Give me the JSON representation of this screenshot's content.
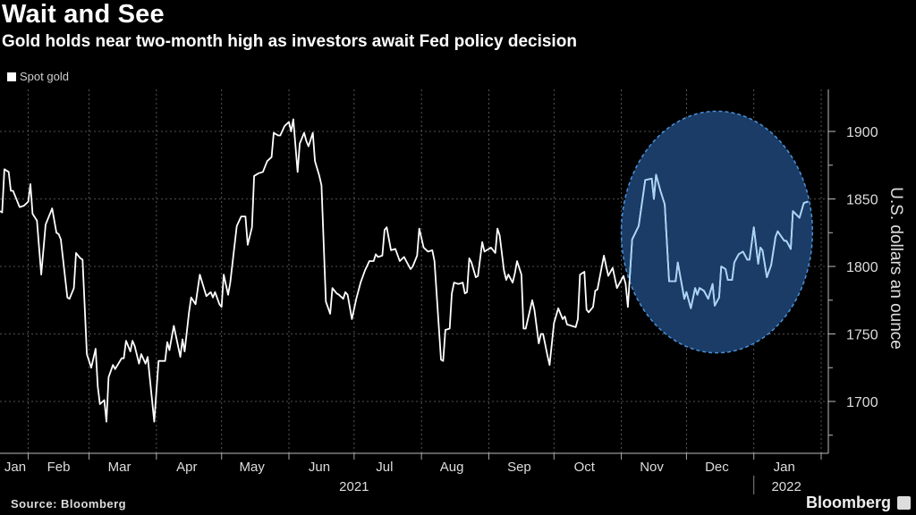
{
  "header": {
    "title": "Wait and See",
    "subtitle": "Gold holds near two-month high as investors await Fed policy decision"
  },
  "footer": {
    "source": "Source: Bloomberg",
    "brand": "Bloomberg"
  },
  "colors": {
    "background": "#000000",
    "line": "#ffffff",
    "highlight_line": "#a9d4f7",
    "highlight_fill": "#1a3c66",
    "highlight_border": "#4a90d9",
    "grid": "#6a6a6a"
  },
  "chart_data": {
    "type": "line",
    "title": "Wait and See",
    "subtitle": "Gold holds near two-month high as investors await Fed policy decision",
    "ylabel": "U.S. dollars an ounce",
    "xlabel": "",
    "y_axis_side": "right",
    "ylim": [
      1660,
      1935
    ],
    "yticks": [
      1700,
      1750,
      1800,
      1850,
      1900
    ],
    "ytick_labels": [
      "1700",
      "1750",
      "1800",
      "1850",
      "1900"
    ],
    "xlim": [
      "2021-01-19",
      "2022-02-08"
    ],
    "xticks": [
      {
        "label": "Jan",
        "date": "2021-01-15"
      },
      {
        "label": "Feb",
        "date": "2021-02-15"
      },
      {
        "label": "Mar",
        "date": "2021-03-15"
      },
      {
        "label": "Apr",
        "date": "2021-04-15"
      },
      {
        "label": "May",
        "date": "2021-05-15"
      },
      {
        "label": "Jun",
        "date": "2021-06-15"
      },
      {
        "label": "Jul",
        "date": "2021-07-15"
      },
      {
        "label": "Aug",
        "date": "2021-08-15"
      },
      {
        "label": "Sep",
        "date": "2021-09-15"
      },
      {
        "label": "Oct",
        "date": "2021-10-15"
      },
      {
        "label": "Nov",
        "date": "2021-11-15"
      },
      {
        "label": "Dec",
        "date": "2021-12-15"
      },
      {
        "label": "Jan",
        "date": "2022-01-15"
      }
    ],
    "year_labels": [
      {
        "label": "2021",
        "date": "2021-07-01"
      },
      {
        "label": "2022",
        "date": "2022-01-16"
      }
    ],
    "grid": true,
    "legend": {
      "position": "top-left",
      "entries": [
        "Spot gold"
      ]
    },
    "highlight": {
      "shape": "ellipse",
      "x_range": [
        "2021-11-01",
        "2022-01-28"
      ],
      "y_range": [
        1736,
        1915
      ]
    },
    "series": [
      {
        "name": "Spot gold",
        "points": [
          [
            "2021-01-19",
            1841
          ],
          [
            "2021-01-20",
            1840
          ],
          [
            "2021-01-21",
            1872
          ],
          [
            "2021-01-23",
            1870
          ],
          [
            "2021-01-24",
            1856
          ],
          [
            "2021-01-25",
            1856
          ],
          [
            "2021-01-28",
            1844
          ],
          [
            "2021-01-30",
            1845
          ],
          [
            "2021-02-01",
            1848
          ],
          [
            "2021-02-02",
            1861
          ],
          [
            "2021-02-03",
            1839
          ],
          [
            "2021-02-05",
            1834
          ],
          [
            "2021-02-07",
            1794
          ],
          [
            "2021-02-09",
            1831
          ],
          [
            "2021-02-12",
            1843
          ],
          [
            "2021-02-14",
            1825
          ],
          [
            "2021-02-15",
            1824
          ],
          [
            "2021-02-16",
            1820
          ],
          [
            "2021-02-19",
            1777
          ],
          [
            "2021-02-20",
            1776
          ],
          [
            "2021-02-22",
            1784
          ],
          [
            "2021-02-23",
            1810
          ],
          [
            "2021-02-25",
            1806
          ],
          [
            "2021-02-26",
            1805
          ],
          [
            "2021-02-28",
            1735
          ],
          [
            "2021-03-02",
            1725
          ],
          [
            "2021-03-04",
            1739
          ],
          [
            "2021-03-05",
            1711
          ],
          [
            "2021-03-06",
            1698
          ],
          [
            "2021-03-08",
            1701
          ],
          [
            "2021-03-09",
            1685
          ],
          [
            "2021-03-10",
            1718
          ],
          [
            "2021-03-12",
            1727
          ],
          [
            "2021-03-13",
            1724
          ],
          [
            "2021-03-16",
            1732
          ],
          [
            "2021-03-17",
            1732
          ],
          [
            "2021-03-18",
            1745
          ],
          [
            "2021-03-20",
            1737
          ],
          [
            "2021-03-21",
            1745
          ],
          [
            "2021-03-22",
            1741
          ],
          [
            "2021-03-24",
            1728
          ],
          [
            "2021-03-25",
            1735
          ],
          [
            "2021-03-27",
            1728
          ],
          [
            "2021-03-28",
            1733
          ],
          [
            "2021-03-31",
            1685
          ],
          [
            "2021-04-02",
            1730
          ],
          [
            "2021-04-05",
            1730
          ],
          [
            "2021-04-06",
            1744
          ],
          [
            "2021-04-07",
            1738
          ],
          [
            "2021-04-09",
            1756
          ],
          [
            "2021-04-12",
            1733
          ],
          [
            "2021-04-13",
            1746
          ],
          [
            "2021-04-14",
            1737
          ],
          [
            "2021-04-16",
            1766
          ],
          [
            "2021-04-17",
            1777
          ],
          [
            "2021-04-19",
            1772
          ],
          [
            "2021-04-21",
            1794
          ],
          [
            "2021-04-24",
            1778
          ],
          [
            "2021-04-26",
            1781
          ],
          [
            "2021-04-27",
            1777
          ],
          [
            "2021-04-28",
            1781
          ],
          [
            "2021-04-30",
            1772
          ],
          [
            "2021-05-01",
            1770
          ],
          [
            "2021-05-02",
            1794
          ],
          [
            "2021-05-04",
            1779
          ],
          [
            "2021-05-05",
            1788
          ],
          [
            "2021-05-08",
            1830
          ],
          [
            "2021-05-10",
            1837
          ],
          [
            "2021-05-12",
            1837
          ],
          [
            "2021-05-13",
            1816
          ],
          [
            "2021-05-15",
            1829
          ],
          [
            "2021-05-16",
            1867
          ],
          [
            "2021-05-18",
            1869
          ],
          [
            "2021-05-20",
            1870
          ],
          [
            "2021-05-22",
            1878
          ],
          [
            "2021-05-24",
            1881
          ],
          [
            "2021-05-25",
            1899
          ],
          [
            "2021-05-27",
            1897
          ],
          [
            "2021-05-28",
            1897
          ],
          [
            "2021-05-30",
            1904
          ],
          [
            "2021-06-01",
            1907
          ],
          [
            "2021-06-02",
            1900
          ],
          [
            "2021-06-03",
            1909
          ],
          [
            "2021-06-05",
            1870
          ],
          [
            "2021-06-06",
            1891
          ],
          [
            "2021-06-08",
            1899
          ],
          [
            "2021-06-09",
            1893
          ],
          [
            "2021-06-10",
            1889
          ],
          [
            "2021-06-12",
            1899
          ],
          [
            "2021-06-13",
            1878
          ],
          [
            "2021-06-15",
            1867
          ],
          [
            "2021-06-16",
            1860
          ],
          [
            "2021-06-18",
            1774
          ],
          [
            "2021-06-20",
            1765
          ],
          [
            "2021-06-21",
            1784
          ],
          [
            "2021-06-23",
            1780
          ],
          [
            "2021-06-24",
            1779
          ],
          [
            "2021-06-26",
            1776
          ],
          [
            "2021-06-27",
            1781
          ],
          [
            "2021-06-28",
            1779
          ],
          [
            "2021-06-30",
            1761
          ],
          [
            "2021-07-02",
            1776
          ],
          [
            "2021-07-04",
            1788
          ],
          [
            "2021-07-06",
            1797
          ],
          [
            "2021-07-08",
            1804
          ],
          [
            "2021-07-10",
            1804
          ],
          [
            "2021-07-11",
            1809
          ],
          [
            "2021-07-12",
            1807
          ],
          [
            "2021-07-14",
            1808
          ],
          [
            "2021-07-15",
            1827
          ],
          [
            "2021-07-16",
            1829
          ],
          [
            "2021-07-18",
            1812
          ],
          [
            "2021-07-20",
            1813
          ],
          [
            "2021-07-22",
            1804
          ],
          [
            "2021-07-24",
            1807
          ],
          [
            "2021-07-27",
            1798
          ],
          [
            "2021-07-28",
            1800
          ],
          [
            "2021-07-30",
            1808
          ],
          [
            "2021-07-31",
            1828
          ],
          [
            "2021-08-02",
            1814
          ],
          [
            "2021-08-04",
            1811
          ],
          [
            "2021-08-06",
            1812
          ],
          [
            "2021-08-07",
            1804
          ],
          [
            "2021-08-10",
            1731
          ],
          [
            "2021-08-11",
            1730
          ],
          [
            "2021-08-12",
            1753
          ],
          [
            "2021-08-14",
            1754
          ],
          [
            "2021-08-15",
            1780
          ],
          [
            "2021-08-16",
            1788
          ],
          [
            "2021-08-18",
            1787
          ],
          [
            "2021-08-20",
            1788
          ],
          [
            "2021-08-21",
            1780
          ],
          [
            "2021-08-22",
            1781
          ],
          [
            "2021-08-23",
            1806
          ],
          [
            "2021-08-24",
            1803
          ],
          [
            "2021-08-26",
            1792
          ],
          [
            "2021-08-27",
            1793
          ],
          [
            "2021-08-29",
            1818
          ],
          [
            "2021-08-30",
            1811
          ],
          [
            "2021-09-02",
            1814
          ],
          [
            "2021-09-04",
            1810
          ],
          [
            "2021-09-05",
            1828
          ],
          [
            "2021-09-06",
            1823
          ],
          [
            "2021-09-08",
            1797
          ],
          [
            "2021-09-09",
            1790
          ],
          [
            "2021-09-10",
            1794
          ],
          [
            "2021-09-12",
            1788
          ],
          [
            "2021-09-13",
            1795
          ],
          [
            "2021-09-14",
            1804
          ],
          [
            "2021-09-16",
            1794
          ],
          [
            "2021-09-17",
            1754
          ],
          [
            "2021-09-18",
            1754
          ],
          [
            "2021-09-21",
            1775
          ],
          [
            "2021-09-22",
            1768
          ],
          [
            "2021-09-24",
            1743
          ],
          [
            "2021-09-25",
            1750
          ],
          [
            "2021-09-26",
            1750
          ],
          [
            "2021-09-28",
            1734
          ],
          [
            "2021-09-29",
            1727
          ],
          [
            "2021-10-01",
            1758
          ],
          [
            "2021-10-03",
            1769
          ],
          [
            "2021-10-05",
            1761
          ],
          [
            "2021-10-06",
            1763
          ],
          [
            "2021-10-07",
            1757
          ],
          [
            "2021-10-09",
            1756
          ],
          [
            "2021-10-11",
            1755
          ],
          [
            "2021-10-12",
            1761
          ],
          [
            "2021-10-13",
            1794
          ],
          [
            "2021-10-15",
            1796
          ],
          [
            "2021-10-16",
            1768
          ],
          [
            "2021-10-17",
            1766
          ],
          [
            "2021-10-19",
            1770
          ],
          [
            "2021-10-20",
            1782
          ],
          [
            "2021-10-21",
            1783
          ],
          [
            "2021-10-24",
            1808
          ],
          [
            "2021-10-26",
            1793
          ],
          [
            "2021-10-28",
            1799
          ],
          [
            "2021-10-30",
            1784
          ],
          [
            "2021-11-02",
            1793
          ],
          [
            "2021-11-03",
            1787
          ],
          [
            "2021-11-04",
            1770
          ],
          [
            "2021-11-06",
            1820
          ],
          [
            "2021-11-09",
            1830
          ],
          [
            "2021-11-12",
            1864
          ],
          [
            "2021-11-15",
            1865
          ],
          [
            "2021-11-16",
            1850
          ],
          [
            "2021-11-17",
            1868
          ],
          [
            "2021-11-19",
            1856
          ],
          [
            "2021-11-21",
            1846
          ],
          [
            "2021-11-23",
            1789
          ],
          [
            "2021-11-26",
            1789
          ],
          [
            "2021-11-27",
            1803
          ],
          [
            "2021-11-30",
            1776
          ],
          [
            "2021-12-01",
            1781
          ],
          [
            "2021-12-03",
            1769
          ],
          [
            "2021-12-05",
            1784
          ],
          [
            "2021-12-06",
            1779
          ],
          [
            "2021-12-07",
            1784
          ],
          [
            "2021-12-09",
            1782
          ],
          [
            "2021-12-11",
            1776
          ],
          [
            "2021-12-13",
            1787
          ],
          [
            "2021-12-14",
            1771
          ],
          [
            "2021-12-16",
            1777
          ],
          [
            "2021-12-17",
            1800
          ],
          [
            "2021-12-19",
            1798
          ],
          [
            "2021-12-20",
            1790
          ],
          [
            "2021-12-22",
            1790
          ],
          [
            "2021-12-23",
            1803
          ],
          [
            "2021-12-25",
            1809
          ],
          [
            "2021-12-27",
            1811
          ],
          [
            "2021-12-29",
            1805
          ],
          [
            "2021-12-30",
            1805
          ],
          [
            "2022-01-01",
            1829
          ],
          [
            "2022-01-03",
            1802
          ],
          [
            "2022-01-04",
            1814
          ],
          [
            "2022-01-05",
            1812
          ],
          [
            "2022-01-07",
            1792
          ],
          [
            "2022-01-09",
            1801
          ],
          [
            "2022-01-11",
            1822
          ],
          [
            "2022-01-12",
            1826
          ],
          [
            "2022-01-15",
            1819
          ],
          [
            "2022-01-16",
            1819
          ],
          [
            "2022-01-18",
            1813
          ],
          [
            "2022-01-19",
            1841
          ],
          [
            "2022-01-22",
            1836
          ],
          [
            "2022-01-24",
            1847
          ],
          [
            "2022-01-26",
            1848
          ]
        ]
      }
    ]
  }
}
